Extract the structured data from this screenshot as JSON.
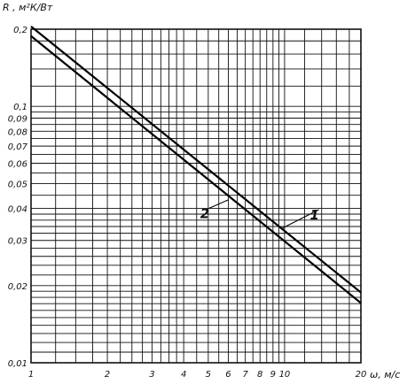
{
  "chart_data": {
    "type": "line",
    "title": "",
    "ylabel": "R , м²К/Вт",
    "xlabel": "ω, м/с",
    "x_scale": "log",
    "y_scale": "log",
    "xlim": [
      1,
      20
    ],
    "ylim": [
      0.01,
      0.2
    ],
    "grid": true,
    "x_grid_values": [
      1,
      1.25,
      1.5,
      1.75,
      2,
      2.25,
      2.5,
      2.75,
      3,
      3.25,
      3.5,
      3.75,
      4,
      4.5,
      5,
      5.5,
      6,
      6.5,
      7,
      7.5,
      8,
      8.5,
      9,
      9.5,
      10,
      12,
      14,
      16,
      18,
      20
    ],
    "y_grid_values": [
      0.01,
      0.011,
      0.012,
      0.013,
      0.014,
      0.015,
      0.016,
      0.017,
      0.018,
      0.019,
      0.02,
      0.022,
      0.024,
      0.026,
      0.028,
      0.03,
      0.032,
      0.034,
      0.036,
      0.038,
      0.04,
      0.045,
      0.05,
      0.055,
      0.06,
      0.065,
      0.07,
      0.075,
      0.08,
      0.085,
      0.09,
      0.095,
      0.1,
      0.12,
      0.14,
      0.16,
      0.18,
      0.2
    ],
    "x_ticks": [
      {
        "value": 1,
        "label": "1"
      },
      {
        "value": 2,
        "label": "2"
      },
      {
        "value": 3,
        "label": "3"
      },
      {
        "value": 4,
        "label": "4"
      },
      {
        "value": 5,
        "label": "5"
      },
      {
        "value": 6,
        "label": "6"
      },
      {
        "value": 7,
        "label": "7"
      },
      {
        "value": 8,
        "label": "8"
      },
      {
        "value": 9,
        "label": "9"
      },
      {
        "value": 10,
        "label": "10"
      },
      {
        "value": 20,
        "label": "20"
      }
    ],
    "y_ticks": [
      {
        "value": 0.2,
        "label": "0,2"
      },
      {
        "value": 0.1,
        "label": "0,1"
      },
      {
        "value": 0.09,
        "label": "0,09"
      },
      {
        "value": 0.08,
        "label": "0,08"
      },
      {
        "value": 0.07,
        "label": "0,07"
      },
      {
        "value": 0.06,
        "label": "0,06"
      },
      {
        "value": 0.05,
        "label": "0,05"
      },
      {
        "value": 0.04,
        "label": "0,04"
      },
      {
        "value": 0.03,
        "label": "0,03"
      },
      {
        "value": 0.02,
        "label": "0,02"
      },
      {
        "value": 0.01,
        "label": "0,01"
      }
    ],
    "series": [
      {
        "name": "1",
        "x": [
          1,
          20
        ],
        "y": [
          0.205,
          0.0188
        ]
      },
      {
        "name": "2",
        "x": [
          1,
          20
        ],
        "y": [
          0.188,
          0.0171
        ]
      }
    ],
    "curve_labels": [
      {
        "series": "2",
        "text": "2",
        "anchor_x": 6.0,
        "anchor_y": 0.0432,
        "label_x": 4.8,
        "label_y": 0.0385
      },
      {
        "series": "1",
        "text": "1",
        "anchor_x": 9.8,
        "anchor_y": 0.0335,
        "label_x": 13.0,
        "label_y": 0.038
      }
    ]
  }
}
